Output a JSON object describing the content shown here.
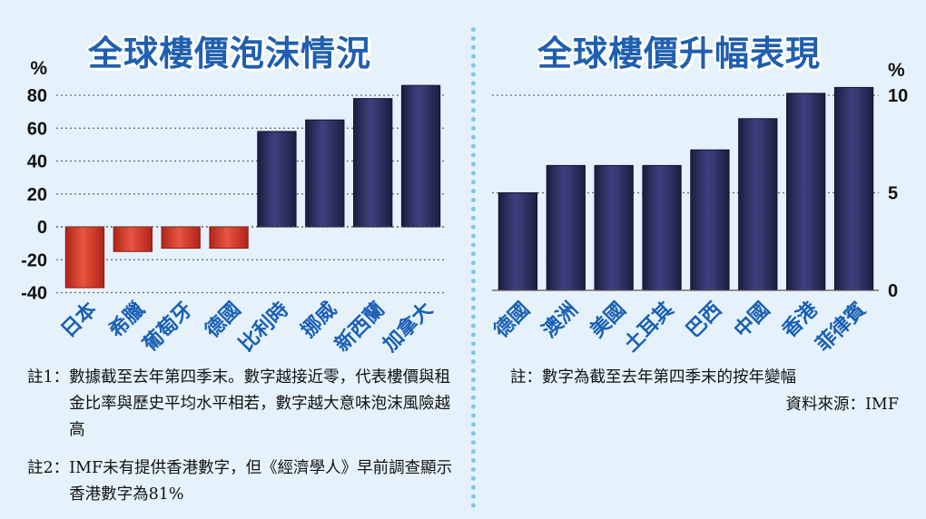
{
  "left_chart": {
    "title": "全球樓價泡沫情況",
    "unit": "%",
    "notes": [
      {
        "label": "註1：",
        "text": "數據截至去年第四季末。數字越接近零，代表樓價與租金比率與歷史平均水平相若，數字越大意味泡沫風險越高"
      },
      {
        "label": "註2：",
        "text": "IMF未有提供香港數字，但《經濟學人》早前調查顯示香港數字為81%"
      }
    ]
  },
  "right_chart": {
    "title": "全球樓價升幅表現",
    "unit": "%",
    "note": "註：數字為截至去年第四季末的按年變幅",
    "source": "資料來源：IMF"
  },
  "colors": {
    "bar_positive": "#2a2c5a",
    "bar_negative": "#cc2f22",
    "title": "#1f5fb0",
    "label": "#1a5fb4",
    "background": "#e6f2fb"
  },
  "chart_data": [
    {
      "type": "bar",
      "title": "全球樓價泡沫情況",
      "ylabel": "%",
      "categories": [
        "日本",
        "希臘",
        "葡萄牙",
        "德國",
        "比利時",
        "挪威",
        "新西蘭",
        "加拿大"
      ],
      "values": [
        -37,
        -15,
        -13,
        -13,
        58,
        65,
        78,
        86
      ],
      "ylim": [
        -40,
        80
      ],
      "yticks": [
        "80",
        "60",
        "40",
        "20",
        "0",
        "-20",
        "-40"
      ],
      "grid": true,
      "axis_side": "left"
    },
    {
      "type": "bar",
      "title": "全球樓價升幅表現",
      "ylabel": "%",
      "categories": [
        "德國",
        "澳洲",
        "美國",
        "土耳其",
        "巴西",
        "中國",
        "香港",
        "菲律賓"
      ],
      "values": [
        5,
        6.4,
        6.4,
        6.4,
        7.2,
        8.8,
        10.1,
        10.4
      ],
      "ylim": [
        0,
        10
      ],
      "yticks": [
        "10",
        "5",
        "0"
      ],
      "grid": true,
      "axis_side": "right"
    }
  ]
}
